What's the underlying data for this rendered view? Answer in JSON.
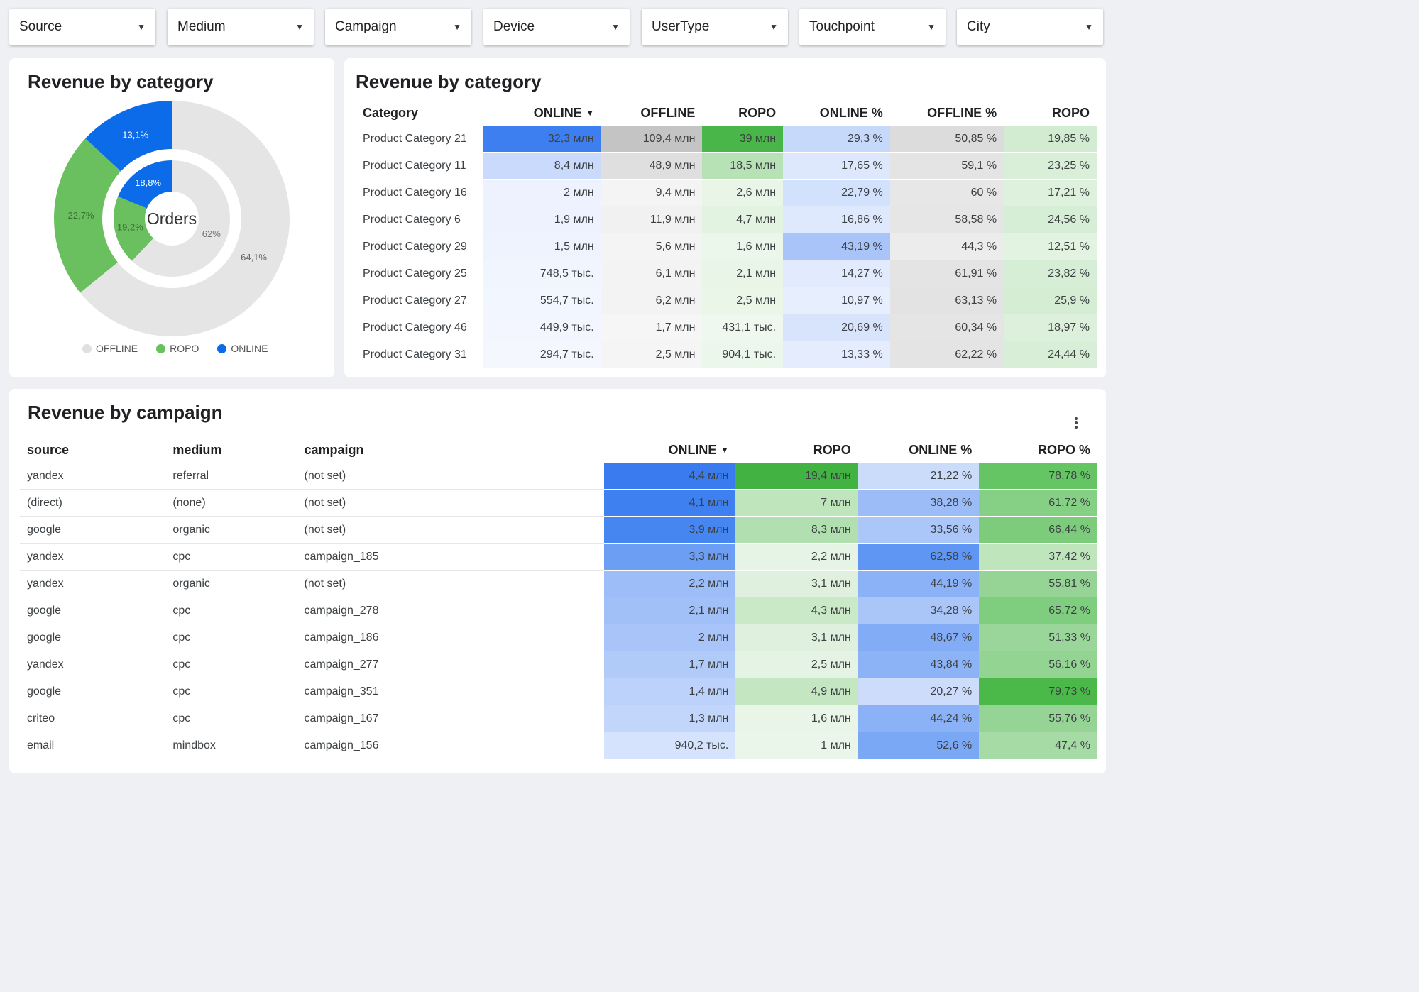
{
  "filters": [
    "Source",
    "Medium",
    "Campaign",
    "Device",
    "UserType",
    "Touchpoint",
    "City"
  ],
  "colors": {
    "offline": "#e5e5e5",
    "ropo": "#6abf5e",
    "online": "#0b6be8"
  },
  "donut": {
    "title": "Revenue by category",
    "center_label": "Orders",
    "legend": [
      "OFFLINE",
      "ROPO",
      "ONLINE"
    ],
    "outer": [
      {
        "name": "OFFLINE",
        "value": 64.1,
        "label": "64,1%"
      },
      {
        "name": "ROPO",
        "value": 22.7,
        "label": "22,7%"
      },
      {
        "name": "ONLINE",
        "value": 13.1,
        "label": "13,1%"
      }
    ],
    "inner": [
      {
        "name": "OFFLINE",
        "value": 62,
        "label": "62%"
      },
      {
        "name": "ROPO",
        "value": 19.2,
        "label": "19,2%"
      },
      {
        "name": "ONLINE",
        "value": 18.8,
        "label": "18,8%"
      }
    ]
  },
  "category_table": {
    "title": "Revenue by category",
    "headers": [
      "Category",
      "ONLINE",
      "OFFLINE",
      "ROPO",
      "ONLINE %",
      "OFFLINE %",
      "ROPO"
    ],
    "sort_icon": "▼",
    "rows": [
      [
        "Product Category 21",
        "32,3 млн",
        "109,4 млн",
        "39 млн",
        "29,3 %",
        "50,85 %",
        "19,85 %"
      ],
      [
        "Product Category 11",
        "8,4 млн",
        "48,9 млн",
        "18,5 млн",
        "17,65 %",
        "59,1 %",
        "23,25 %"
      ],
      [
        "Product Category 16",
        "2 млн",
        "9,4 млн",
        "2,6 млн",
        "22,79 %",
        "60 %",
        "17,21 %"
      ],
      [
        "Product Category 6",
        "1,9 млн",
        "11,9 млн",
        "4,7 млн",
        "16,86 %",
        "58,58 %",
        "24,56 %"
      ],
      [
        "Product Category 29",
        "1,5 млн",
        "5,6 млн",
        "1,6 млн",
        "43,19 %",
        "44,3 %",
        "12,51 %"
      ],
      [
        "Product Category 25",
        "748,5 тыс.",
        "6,1 млн",
        "2,1 млн",
        "14,27 %",
        "61,91 %",
        "23,82 %"
      ],
      [
        "Product Category 27",
        "554,7 тыс.",
        "6,2 млн",
        "2,5 млн",
        "10,97 %",
        "63,13 %",
        "25,9 %"
      ],
      [
        "Product Category 46",
        "449,9 тыс.",
        "1,7 млн",
        "431,1 тыс.",
        "20,69 %",
        "60,34 %",
        "18,97 %"
      ],
      [
        "Product Category 31",
        "294,7 тыс.",
        "2,5 млн",
        "904,1 тыс.",
        "13,33 %",
        "62,22 %",
        "24,44 %"
      ]
    ],
    "cell_colors": [
      [
        "",
        "#3d7ff0",
        "#c4c4c4",
        "#48b648",
        "#c7d9fb",
        "#dcdcdc",
        "#d2ecd2"
      ],
      [
        "",
        "#c9dafc",
        "#dfdfdf",
        "#b7e2b5",
        "#dde8fd",
        "#e4e4e4",
        "#d9efd8"
      ],
      [
        "",
        "#edf2fe",
        "#f4f4f4",
        "#e8f5e7",
        "#d2e1fc",
        "#e7e7e7",
        "#ddf1dc"
      ],
      [
        "",
        "#edf2fe",
        "#f1f1f1",
        "#e2f3e1",
        "#dfe9fd",
        "#e6e6e6",
        "#d7eed6"
      ],
      [
        "",
        "#eef3fe",
        "#f4f4f4",
        "#ebf7ea",
        "#a9c4f8",
        "#ececec",
        "#e2f3e1"
      ],
      [
        "",
        "#f1f5fe",
        "#f3f3f3",
        "#e8f5e7",
        "#e2ebfd",
        "#e4e4e4",
        "#d7eed6"
      ],
      [
        "",
        "#f2f6fe",
        "#f3f3f3",
        "#e9f6e8",
        "#e7eefd",
        "#e3e3e3",
        "#d4edd3"
      ],
      [
        "",
        "#f3f6fe",
        "#f6f6f6",
        "#eff8ee",
        "#d7e4fc",
        "#e5e5e5",
        "#dcf0db"
      ],
      [
        "",
        "#f4f7fe",
        "#f5f5f5",
        "#ecf7eb",
        "#e4ecfd",
        "#e4e4e4",
        "#d8eed7"
      ]
    ]
  },
  "campaign_table": {
    "title": "Revenue by campaign",
    "headers": [
      "source",
      "medium",
      "campaign",
      "ONLINE",
      "ROPO",
      "ONLINE %",
      "ROPO %"
    ],
    "sort_icon": "▼",
    "rows": [
      [
        "yandex",
        "referral",
        "(not set)",
        "4,4 млн",
        "19,4 млн",
        "21,22 %",
        "78,78 %"
      ],
      [
        "(direct)",
        "(none)",
        "(not set)",
        "4,1 млн",
        "7 млн",
        "38,28 %",
        "61,72 %"
      ],
      [
        "google",
        "organic",
        "(not set)",
        "3,9 млн",
        "8,3 млн",
        "33,56 %",
        "66,44 %"
      ],
      [
        "yandex",
        "cpc",
        "campaign_185",
        "3,3 млн",
        "2,2 млн",
        "62,58 %",
        "37,42 %"
      ],
      [
        "yandex",
        "organic",
        "(not set)",
        "2,2 млн",
        "3,1 млн",
        "44,19 %",
        "55,81 %"
      ],
      [
        "google",
        "cpc",
        "campaign_278",
        "2,1 млн",
        "4,3 млн",
        "34,28 %",
        "65,72 %"
      ],
      [
        "google",
        "cpc",
        "campaign_186",
        "2 млн",
        "3,1 млн",
        "48,67 %",
        "51,33 %"
      ],
      [
        "yandex",
        "cpc",
        "campaign_277",
        "1,7 млн",
        "2,5 млн",
        "43,84 %",
        "56,16 %"
      ],
      [
        "google",
        "cpc",
        "campaign_351",
        "1,4 млн",
        "4,9 млн",
        "20,27 %",
        "79,73 %"
      ],
      [
        "criteo",
        "cpc",
        "campaign_167",
        "1,3 млн",
        "1,6 млн",
        "44,24 %",
        "55,76 %"
      ],
      [
        "email",
        "mindbox",
        "campaign_156",
        "940,2 тыс.",
        "1 млн",
        "52,6 %",
        "47,4 %"
      ]
    ],
    "cell_colors": [
      [
        "",
        "",
        "",
        "#3a7cf0",
        "#42b342",
        "#cbdcfb",
        "#65c565"
      ],
      [
        "",
        "",
        "",
        "#3f80f0",
        "#bfe5bd",
        "#9cbcf8",
        "#86d086"
      ],
      [
        "",
        "",
        "",
        "#4586f1",
        "#b2dfb0",
        "#abc6f8",
        "#7ccc7c"
      ],
      [
        "",
        "",
        "",
        "#6c9ff4",
        "#e6f4e5",
        "#5f96f3",
        "#bfe5bd"
      ],
      [
        "",
        "",
        "",
        "#9dbdf8",
        "#dff1de",
        "#8bb2f7",
        "#95d494"
      ],
      [
        "",
        "",
        "",
        "#a2c0f8",
        "#c9e9c7",
        "#aac5f8",
        "#7fcd7f"
      ],
      [
        "",
        "",
        "",
        "#a8c4f8",
        "#dff1de",
        "#82acf6",
        "#9ad69a"
      ],
      [
        "",
        "",
        "",
        "#b1cbf9",
        "#e4f3e3",
        "#8db3f7",
        "#93d492"
      ],
      [
        "",
        "",
        "",
        "#bdd2fa",
        "#c4e7c2",
        "#cddcfb",
        "#4ab94a"
      ],
      [
        "",
        "",
        "",
        "#c2d6fb",
        "#e8f5e7",
        "#8bb2f7",
        "#95d494"
      ],
      [
        "",
        "",
        "",
        "#d6e3fc",
        "#eaf6e9",
        "#7aa8f5",
        "#a7dba6"
      ]
    ]
  }
}
